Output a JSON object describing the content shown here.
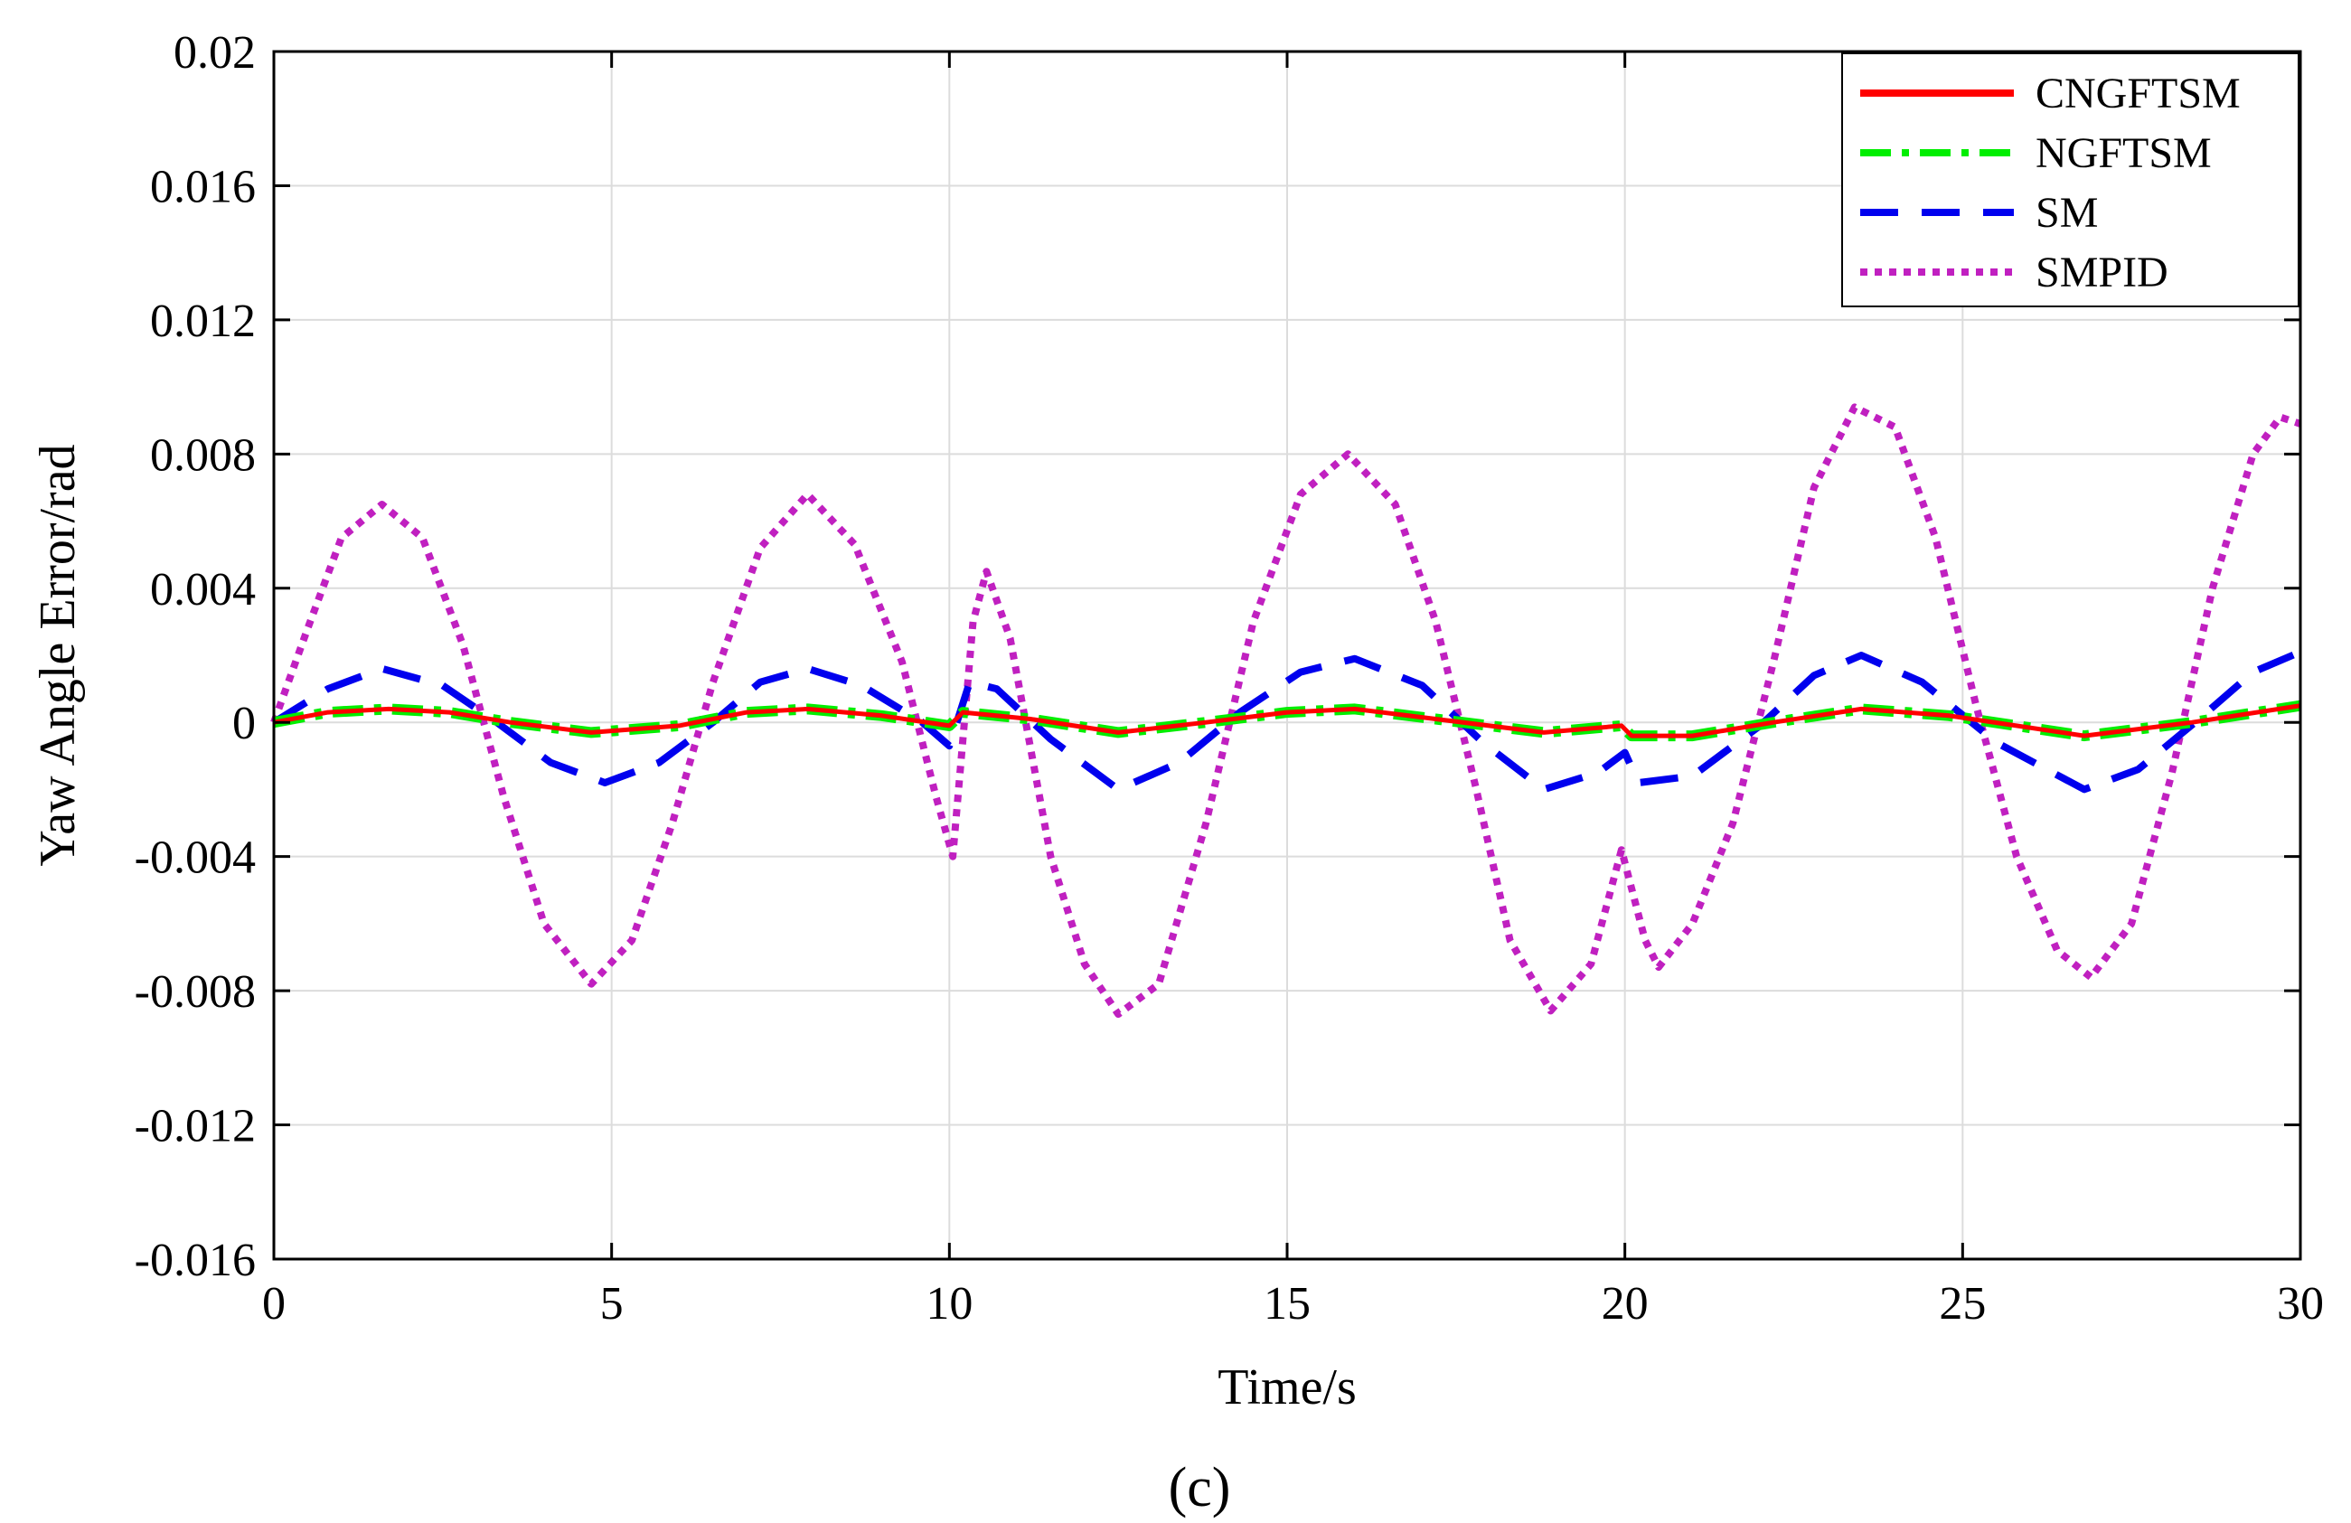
{
  "chart_data": {
    "type": "line",
    "title": "",
    "xlabel": "Time/s",
    "ylabel": "Yaw Angle Error/rad",
    "caption": "(c)",
    "xlim": [
      0,
      30
    ],
    "ylim": [
      -0.016,
      0.02
    ],
    "grid": true,
    "legend_position": "top-right",
    "x_ticks": [
      0,
      5,
      10,
      15,
      20,
      25,
      30
    ],
    "x_tick_labels": [
      "0",
      "5",
      "10",
      "15",
      "20",
      "25",
      "30"
    ],
    "y_ticks": [
      0.02,
      0.016,
      0.012,
      0.008,
      0.004,
      0,
      -0.004,
      -0.008,
      -0.012,
      -0.016
    ],
    "y_tick_labels": [
      "0.02",
      "0.016",
      "0.012",
      "0.008",
      "0.004",
      "0",
      "-0.004",
      "-0.008",
      "-0.012",
      "-0.016"
    ],
    "series": [
      {
        "name": "CNGFTSM",
        "color": "#ff0000",
        "style": "solid",
        "points": [
          [
            0,
            0
          ],
          [
            0.8,
            0.0003
          ],
          [
            1.7,
            0.0004
          ],
          [
            2.6,
            0.0003
          ],
          [
            3.5,
            0
          ],
          [
            4.7,
            -0.0003
          ],
          [
            6.0,
            -0.0001
          ],
          [
            7.0,
            0.0003
          ],
          [
            7.9,
            0.0004
          ],
          [
            9.0,
            0.0002
          ],
          [
            10.0,
            -0.0001
          ],
          [
            10.2,
            0.0003
          ],
          [
            11.2,
            0.0001
          ],
          [
            12.5,
            -0.0003
          ],
          [
            13.8,
            0
          ],
          [
            15.0,
            0.0003
          ],
          [
            16.0,
            0.0004
          ],
          [
            17.2,
            0.0001
          ],
          [
            18.8,
            -0.0003
          ],
          [
            19.95,
            -0.0001
          ],
          [
            20.1,
            -0.0004
          ],
          [
            21.0,
            -0.0004
          ],
          [
            22.2,
            0
          ],
          [
            23.5,
            0.0004
          ],
          [
            24.8,
            0.0002
          ],
          [
            26.8,
            -0.0004
          ],
          [
            28.4,
            0
          ],
          [
            30.0,
            0.0005
          ]
        ]
      },
      {
        "name": "NGFTSM",
        "color": "#00ee00",
        "style": "dashdot",
        "points": [
          [
            0,
            0
          ],
          [
            0.8,
            0.0003
          ],
          [
            1.7,
            0.0004
          ],
          [
            2.6,
            0.0003
          ],
          [
            3.5,
            0
          ],
          [
            4.7,
            -0.0003
          ],
          [
            6.0,
            -0.0001
          ],
          [
            7.0,
            0.0003
          ],
          [
            7.9,
            0.0004
          ],
          [
            9.0,
            0.0002
          ],
          [
            10.0,
            -0.0001
          ],
          [
            10.2,
            0.0003
          ],
          [
            11.2,
            0.0001
          ],
          [
            12.5,
            -0.0003
          ],
          [
            13.8,
            0
          ],
          [
            15.0,
            0.0003
          ],
          [
            16.0,
            0.0004
          ],
          [
            17.2,
            0.0001
          ],
          [
            18.8,
            -0.0003
          ],
          [
            19.95,
            -0.0001
          ],
          [
            20.1,
            -0.0004
          ],
          [
            21.0,
            -0.0004
          ],
          [
            22.2,
            0
          ],
          [
            23.5,
            0.0004
          ],
          [
            24.8,
            0.0002
          ],
          [
            26.8,
            -0.0004
          ],
          [
            28.4,
            0
          ],
          [
            30.0,
            0.0005
          ]
        ]
      },
      {
        "name": "SM",
        "color": "#0000ee",
        "style": "dashed",
        "points": [
          [
            0,
            0
          ],
          [
            0.8,
            0.001
          ],
          [
            1.6,
            0.0016
          ],
          [
            2.5,
            0.0011
          ],
          [
            3.3,
            0
          ],
          [
            4.1,
            -0.0012
          ],
          [
            4.9,
            -0.0018
          ],
          [
            5.7,
            -0.0012
          ],
          [
            6.5,
            0
          ],
          [
            7.2,
            0.0012
          ],
          [
            7.9,
            0.0016
          ],
          [
            8.7,
            0.0011
          ],
          [
            9.6,
            0
          ],
          [
            10.0,
            -0.0007
          ],
          [
            10.3,
            0.0012
          ],
          [
            10.7,
            0.001
          ],
          [
            11.5,
            -0.0005
          ],
          [
            12.5,
            -0.002
          ],
          [
            13.4,
            -0.0012
          ],
          [
            14.3,
            0.0003
          ],
          [
            15.2,
            0.0015
          ],
          [
            16.0,
            0.0019
          ],
          [
            17.0,
            0.0011
          ],
          [
            17.9,
            -0.0006
          ],
          [
            18.8,
            -0.002
          ],
          [
            19.6,
            -0.0015
          ],
          [
            20.0,
            -0.0009
          ],
          [
            20.2,
            -0.0018
          ],
          [
            21.0,
            -0.0016
          ],
          [
            22.0,
            -0.0001
          ],
          [
            22.8,
            0.0014
          ],
          [
            23.5,
            0.002
          ],
          [
            24.4,
            0.0012
          ],
          [
            25.5,
            -0.0006
          ],
          [
            26.8,
            -0.002
          ],
          [
            27.6,
            -0.0014
          ],
          [
            28.5,
            0.0001
          ],
          [
            29.3,
            0.0015
          ],
          [
            30.0,
            0.0021
          ]
        ]
      },
      {
        "name": "SMPID",
        "color": "#c020c0",
        "style": "dotted",
        "points": [
          [
            0,
            0
          ],
          [
            0.5,
            0.0028
          ],
          [
            1.0,
            0.0055
          ],
          [
            1.6,
            0.0065
          ],
          [
            2.2,
            0.0055
          ],
          [
            2.8,
            0.0023
          ],
          [
            3.4,
            -0.0022
          ],
          [
            4.0,
            -0.006
          ],
          [
            4.7,
            -0.0078
          ],
          [
            5.3,
            -0.0065
          ],
          [
            5.9,
            -0.003
          ],
          [
            6.5,
            0.0012
          ],
          [
            7.2,
            0.0052
          ],
          [
            7.9,
            0.0068
          ],
          [
            8.6,
            0.0053
          ],
          [
            9.3,
            0.0018
          ],
          [
            9.8,
            -0.0022
          ],
          [
            10.05,
            -0.004
          ],
          [
            10.35,
            0.003
          ],
          [
            10.55,
            0.0045
          ],
          [
            10.9,
            0.0025
          ],
          [
            11.5,
            -0.004
          ],
          [
            12.0,
            -0.0072
          ],
          [
            12.5,
            -0.0087
          ],
          [
            13.1,
            -0.0078
          ],
          [
            13.8,
            -0.003
          ],
          [
            14.5,
            0.003
          ],
          [
            15.2,
            0.0068
          ],
          [
            15.9,
            0.008
          ],
          [
            16.6,
            0.0065
          ],
          [
            17.2,
            0.003
          ],
          [
            17.8,
            -0.002
          ],
          [
            18.3,
            -0.0065
          ],
          [
            18.9,
            -0.0086
          ],
          [
            19.5,
            -0.0072
          ],
          [
            19.95,
            -0.0038
          ],
          [
            20.3,
            -0.0065
          ],
          [
            20.5,
            -0.0073
          ],
          [
            21.0,
            -0.006
          ],
          [
            21.6,
            -0.003
          ],
          [
            22.2,
            0.0018
          ],
          [
            22.8,
            0.007
          ],
          [
            23.4,
            0.0094
          ],
          [
            24.0,
            0.0088
          ],
          [
            24.6,
            0.0055
          ],
          [
            25.2,
            0.0005
          ],
          [
            25.8,
            -0.004
          ],
          [
            26.4,
            -0.0068
          ],
          [
            26.9,
            -0.0076
          ],
          [
            27.5,
            -0.006
          ],
          [
            28.1,
            -0.0015
          ],
          [
            28.7,
            0.004
          ],
          [
            29.3,
            0.008
          ],
          [
            29.7,
            0.0091
          ],
          [
            30.0,
            0.0089
          ]
        ]
      }
    ]
  }
}
